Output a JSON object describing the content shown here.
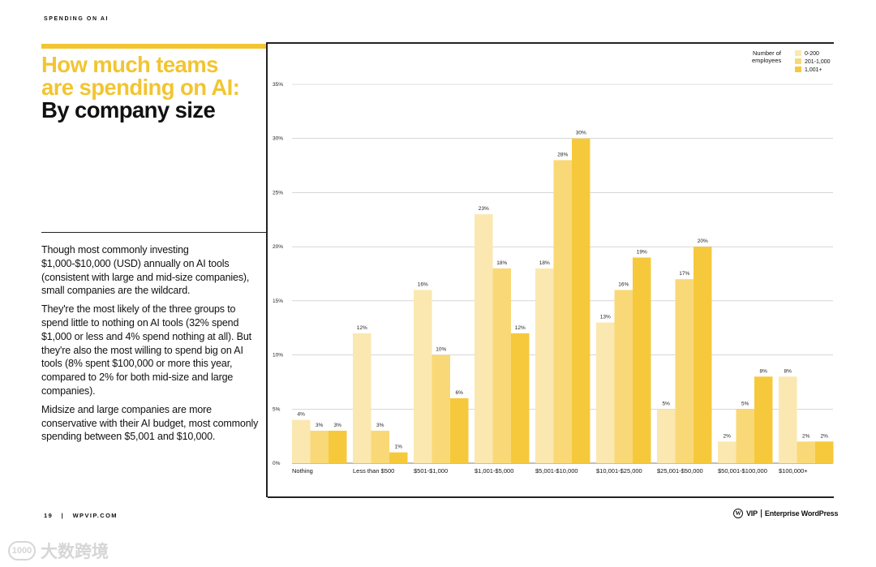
{
  "header": {
    "section": "SPENDING ON AI"
  },
  "headline": {
    "line1": "How much teams",
    "line2": "are spending on AI:",
    "line3": "By company size"
  },
  "body": {
    "p1": "Though most commonly investing $1,000-$10,000 (USD) annually on AI tools (consistent with large and mid-size companies), small companies are the wildcard.",
    "p2": "They're the most likely of the three groups to spend little to nothing on AI tools (32% spend $1,000 or less and 4% spend nothing at all). But they're also the most willing to spend big on AI tools (8% spent $100,000 or more this year, compared to 2% for both mid-size and large companies).",
    "p3": "Midsize and large companies are more conservative with their AI budget, most commonly spending between $5,001 and $10,000."
  },
  "footer": {
    "page_number": "19",
    "separator": "|",
    "site": "WPVIP.COM",
    "logo_glyph": "W",
    "brand_vip": "VIP",
    "brand_name": "Enterprise WordPress"
  },
  "watermark": {
    "icon_text": "1000",
    "text": "大数跨境"
  },
  "colors": {
    "series1": "#fbe8b0",
    "series2": "#f9d977",
    "series3": "#f6c93d",
    "accent": "#f2c531"
  },
  "chart_data": {
    "type": "bar",
    "title": "How much teams are spending on AI: By company size",
    "legend_title": [
      "Number of",
      "employees"
    ],
    "legend_position": "top-right",
    "categories": [
      "Nothing",
      "Less than $500",
      "$501-$1,000",
      "$1,001-$5,000",
      "$5,001-$10,000",
      "$10,001-$25,000",
      "$25,001-$50,000",
      "$50,001-$100,000",
      "$100,000+"
    ],
    "series": [
      {
        "name": "0-200",
        "values": [
          4,
          12,
          16,
          23,
          18,
          13,
          5,
          2,
          8
        ]
      },
      {
        "name": "201-1,000",
        "values": [
          3,
          3,
          10,
          18,
          28,
          16,
          17,
          5,
          2
        ]
      },
      {
        "name": "1,001+",
        "values": [
          3,
          1,
          6,
          12,
          30,
          19,
          20,
          8,
          2
        ]
      }
    ],
    "yticks": [
      0,
      5,
      10,
      15,
      20,
      25,
      30,
      35
    ],
    "ylim": [
      0,
      35
    ],
    "value_suffix": "%",
    "grid": true
  }
}
